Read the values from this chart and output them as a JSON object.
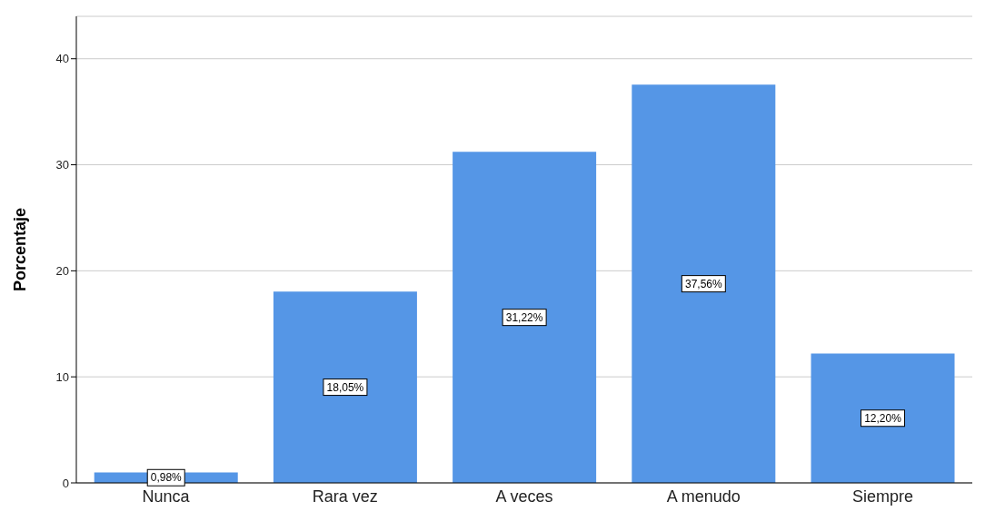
{
  "chart_data": {
    "type": "bar",
    "ylabel": "Porcentaje",
    "categories": [
      "Nunca",
      "Rara vez",
      "A veces",
      "A menudo",
      "Siempre"
    ],
    "values": [
      0.98,
      18.05,
      31.22,
      37.56,
      12.2
    ],
    "value_labels": [
      "0,98%",
      "18,05%",
      "31,22%",
      "37,56%",
      "12,20%"
    ],
    "color": "#5596e6",
    "ylim": [
      0,
      44
    ],
    "yticks": [
      0,
      10,
      20,
      30,
      40
    ],
    "grid": "y"
  }
}
